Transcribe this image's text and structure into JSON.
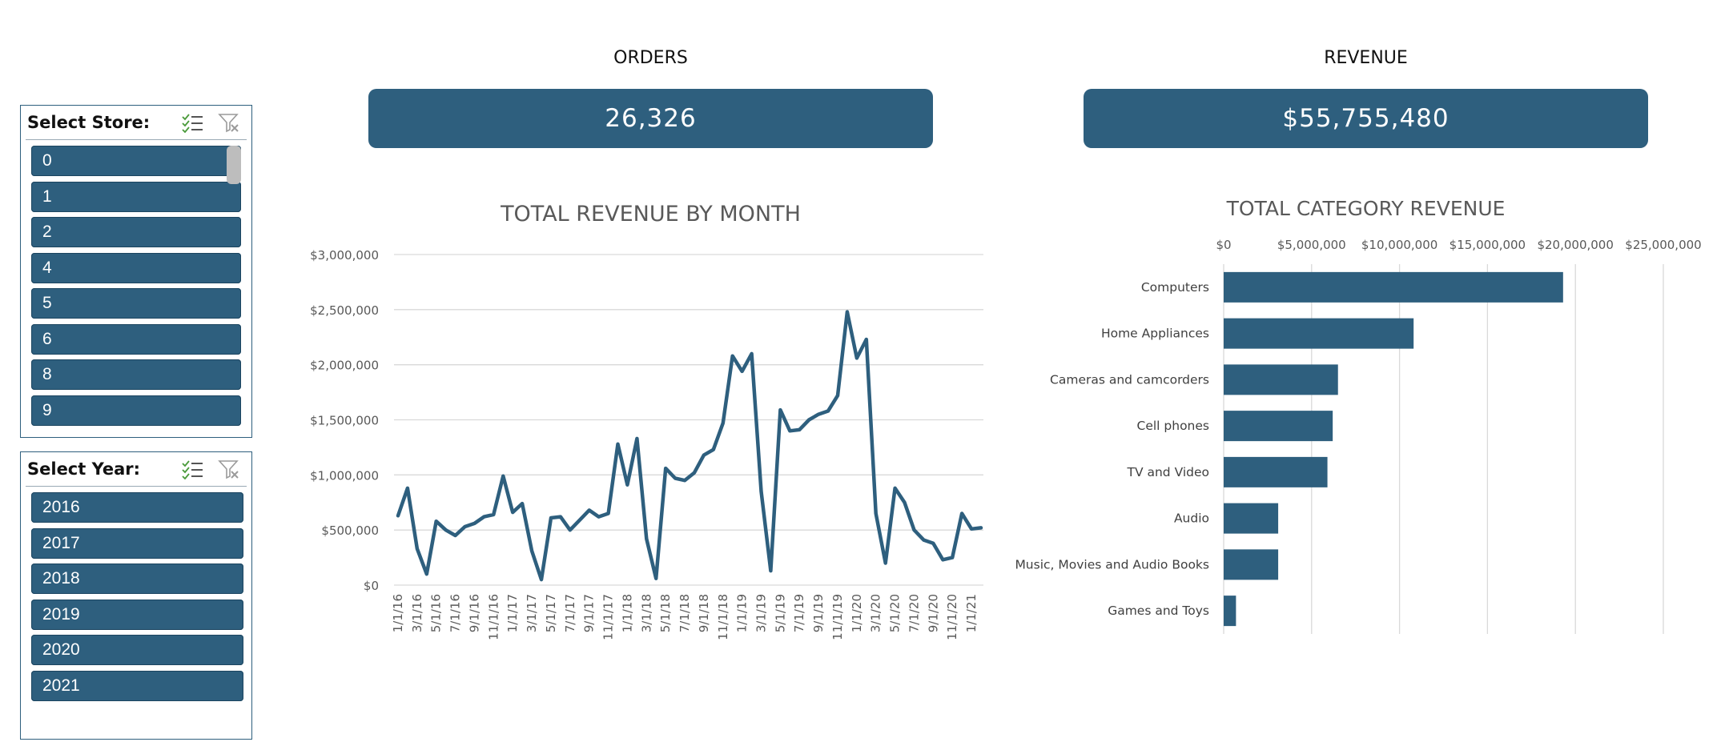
{
  "slicers": {
    "store": {
      "title": "Select Store:",
      "items": [
        "0",
        "1",
        "2",
        "4",
        "5",
        "6",
        "8",
        "9"
      ]
    },
    "year": {
      "title": "Select Year:",
      "items": [
        "2016",
        "2017",
        "2018",
        "2019",
        "2020",
        "2021"
      ]
    },
    "icons": {
      "multi_select": "multi-select-icon",
      "clear_filter": "clear-filter-icon"
    }
  },
  "kpis": {
    "orders": {
      "label": "ORDERS",
      "value": "26,326"
    },
    "revenue": {
      "label": "REVENUE",
      "value": "$55,755,480"
    }
  },
  "colors": {
    "accent": "#2e5f7e",
    "grid": "#d9d9d9",
    "axis_text": "#595959"
  },
  "chart_data": [
    {
      "type": "line",
      "title": "TOTAL REVENUE BY MONTH",
      "x": [
        "1/1/16",
        "2/1/16",
        "3/1/16",
        "4/1/16",
        "5/1/16",
        "6/1/16",
        "7/1/16",
        "8/1/16",
        "9/1/16",
        "10/1/16",
        "11/1/16",
        "12/1/16",
        "1/1/17",
        "2/1/17",
        "3/1/17",
        "4/1/17",
        "5/1/17",
        "6/1/17",
        "7/1/17",
        "8/1/17",
        "9/1/17",
        "10/1/17",
        "11/1/17",
        "12/1/17",
        "1/1/18",
        "2/1/18",
        "3/1/18",
        "4/1/18",
        "5/1/18",
        "6/1/18",
        "7/1/18",
        "8/1/18",
        "9/1/18",
        "10/1/18",
        "11/1/18",
        "12/1/18",
        "1/1/19",
        "2/1/19",
        "3/1/19",
        "4/1/19",
        "5/1/19",
        "6/1/19",
        "7/1/19",
        "8/1/19",
        "9/1/19",
        "10/1/19",
        "11/1/19",
        "12/1/19",
        "1/1/20",
        "2/1/20",
        "3/1/20",
        "4/1/20",
        "5/1/20",
        "6/1/20",
        "7/1/20",
        "8/1/20",
        "9/1/20",
        "10/1/20",
        "11/1/20",
        "12/1/20",
        "1/1/21",
        "2/1/21"
      ],
      "x_tick_labels": [
        "1/1/16",
        "3/1/16",
        "5/1/16",
        "7/1/16",
        "9/1/16",
        "11/1/16",
        "1/1/17",
        "3/1/17",
        "5/1/17",
        "7/1/17",
        "9/1/17",
        "11/1/17",
        "1/1/18",
        "3/1/18",
        "5/1/18",
        "7/1/18",
        "9/1/18",
        "11/1/18",
        "1/1/19",
        "3/1/19",
        "5/1/19",
        "7/1/19",
        "9/1/19",
        "11/1/19",
        "1/1/20",
        "3/1/20",
        "5/1/20",
        "7/1/20",
        "9/1/20",
        "11/1/20",
        "1/1/21"
      ],
      "series": [
        {
          "values": [
            630000,
            880000,
            330000,
            100000,
            580000,
            500000,
            450000,
            530000,
            560000,
            620000,
            640000,
            990000,
            660000,
            740000,
            310000,
            50000,
            610000,
            620000,
            500000,
            590000,
            680000,
            620000,
            650000,
            1280000,
            910000,
            1330000,
            420000,
            60000,
            1060000,
            970000,
            950000,
            1020000,
            1180000,
            1230000,
            1470000,
            2080000,
            1940000,
            2100000,
            850000,
            130000,
            1590000,
            1400000,
            1410000,
            1500000,
            1550000,
            1580000,
            1720000,
            2480000,
            2060000,
            2230000,
            650000,
            200000,
            880000,
            750000,
            500000,
            410000,
            380000,
            230000,
            250000,
            650000,
            510000,
            520000
          ]
        }
      ],
      "y_ticks": [
        "$0",
        "$500,000",
        "$1,000,000",
        "$1,500,000",
        "$2,000,000",
        "$2,500,000",
        "$3,000,000"
      ],
      "ylim": [
        0,
        3000000
      ],
      "grid": true
    },
    {
      "type": "bar",
      "orientation": "horizontal",
      "title": "TOTAL CATEGORY REVENUE",
      "categories": [
        "Computers",
        "Home Appliances",
        "Cameras and camcorders",
        "Cell phones",
        "TV and Video",
        "Audio",
        "Music, Movies and Audio Books",
        "Games and Toys"
      ],
      "values": [
        19300000,
        10800000,
        6500000,
        6200000,
        5900000,
        3100000,
        3100000,
        700000
      ],
      "x_ticks": [
        "$0",
        "$5,000,000",
        "$10,000,000",
        "$15,000,000",
        "$20,000,000",
        "$25,000,000"
      ],
      "xlim": [
        0,
        25000000
      ],
      "axis_position": "top",
      "grid": true
    }
  ]
}
